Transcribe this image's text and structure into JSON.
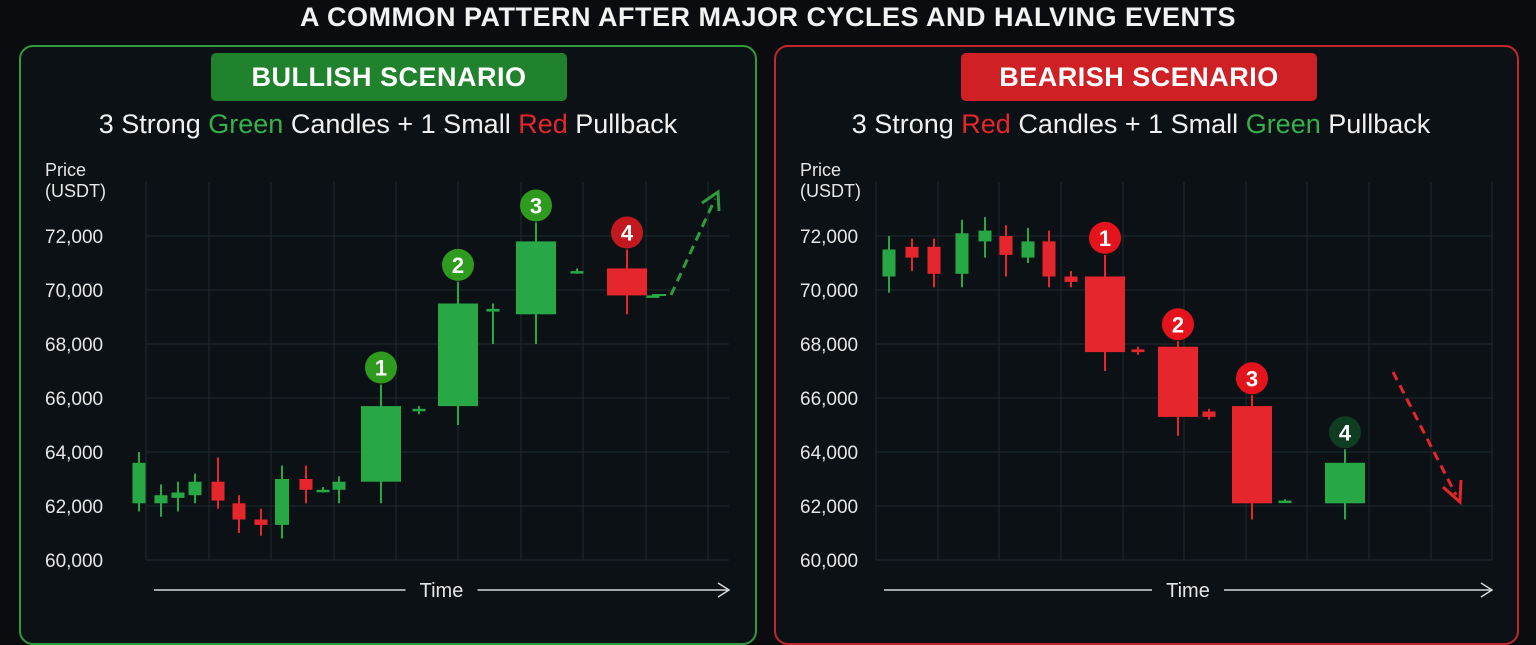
{
  "title": "A COMMON PATTERN AFTER MAJOR CYCLES AND HALVING EVENTS",
  "bullish": {
    "badge": "BULLISH SCENARIO",
    "subtitle": {
      "p1": "3 Strong ",
      "w1": "Green",
      "p2": " Candles + 1 Small ",
      "w2": "Red",
      "p3": " Pullback"
    }
  },
  "bearish": {
    "badge": "BEARISH SCENARIO",
    "subtitle": {
      "p1": "3 Strong ",
      "w1": "Red",
      "p2": " Candles + 1 Small ",
      "w2": "Green",
      "p3": " Pullback"
    }
  },
  "colors": {
    "up": "#28a745",
    "down": "#e5262d",
    "grid": "#1e2a30",
    "marker_bull_green": "#2f9b1e",
    "marker_bull_red": "#c1191f",
    "marker_bear_red": "#e5141c",
    "marker_bear_green": "#0f3d22"
  },
  "chart_data": [
    {
      "type": "candlestick",
      "panel": "bullish",
      "ylabel": "Price\n(USDT)",
      "xlabel": "Time",
      "ylim": [
        60000,
        74000
      ],
      "yticks": [
        "60,000",
        "62,000",
        "64,000",
        "66,000",
        "68,000",
        "70,000",
        "72,000"
      ],
      "ytick_values": [
        60000,
        62000,
        64000,
        66000,
        68000,
        70000,
        72000
      ],
      "candles": [
        {
          "x": 1,
          "open": 62100,
          "close": 63600,
          "high": 64000,
          "low": 61800
        },
        {
          "x": 2,
          "open": 62100,
          "close": 62400,
          "high": 62800,
          "low": 61600
        },
        {
          "x": 3,
          "open": 62300,
          "close": 62500,
          "high": 62900,
          "low": 61800
        },
        {
          "x": 4,
          "open": 62400,
          "close": 62900,
          "high": 63200,
          "low": 62100
        },
        {
          "x": 5,
          "open": 62900,
          "close": 62200,
          "high": 63800,
          "low": 61900
        },
        {
          "x": 6,
          "open": 62100,
          "close": 61500,
          "high": 62400,
          "low": 61000
        },
        {
          "x": 7,
          "open": 61500,
          "close": 61300,
          "high": 61900,
          "low": 60900
        },
        {
          "x": 8,
          "open": 61300,
          "close": 63000,
          "high": 63500,
          "low": 60800
        },
        {
          "x": 9,
          "open": 63000,
          "close": 62600,
          "high": 63500,
          "low": 62100
        },
        {
          "x": 10,
          "open": 62600,
          "close": 62600,
          "high": 62700,
          "low": 62500
        },
        {
          "x": 11,
          "open": 62600,
          "close": 62900,
          "high": 63100,
          "low": 62100
        },
        {
          "x": 12,
          "open": 62900,
          "close": 65700,
          "high": 66500,
          "low": 62100,
          "marker": "1"
        },
        {
          "x": 13,
          "open": 65600,
          "close": 65600,
          "high": 65700,
          "low": 65400
        },
        {
          "x": 14,
          "open": 65700,
          "close": 69500,
          "high": 70300,
          "low": 65000,
          "marker": "2"
        },
        {
          "x": 15,
          "open": 69200,
          "close": 69300,
          "high": 69500,
          "low": 68000
        },
        {
          "x": 16,
          "open": 69100,
          "close": 71800,
          "high": 72500,
          "low": 68000,
          "marker": "3"
        },
        {
          "x": 17,
          "open": 70700,
          "close": 70700,
          "high": 70800,
          "low": 70600
        },
        {
          "x": 18,
          "open": 70800,
          "close": 69800,
          "high": 71500,
          "low": 69100,
          "marker": "4"
        },
        {
          "x": 19,
          "open": 69800,
          "close": 69800,
          "high": 69850,
          "low": 69750
        }
      ],
      "trend_arrow": "up"
    },
    {
      "type": "candlestick",
      "panel": "bearish",
      "ylabel": "Price\n(USDT)",
      "xlabel": "Time",
      "ylim": [
        60000,
        74000
      ],
      "yticks": [
        "60,000",
        "62,000",
        "64,000",
        "66,000",
        "68,000",
        "70,000",
        "72,000"
      ],
      "ytick_values": [
        60000,
        62000,
        64000,
        66000,
        68000,
        70000,
        72000
      ],
      "candles": [
        {
          "x": 1,
          "open": 70500,
          "close": 71500,
          "high": 72000,
          "low": 69900
        },
        {
          "x": 2,
          "open": 71600,
          "close": 71200,
          "high": 71900,
          "low": 70700
        },
        {
          "x": 3,
          "open": 71600,
          "close": 70600,
          "high": 71900,
          "low": 70100
        },
        {
          "x": 4,
          "open": 70600,
          "close": 72100,
          "high": 72600,
          "low": 70100
        },
        {
          "x": 5,
          "open": 71800,
          "close": 72200,
          "high": 72700,
          "low": 71200
        },
        {
          "x": 6,
          "open": 72000,
          "close": 71300,
          "high": 72400,
          "low": 70500
        },
        {
          "x": 7,
          "open": 71200,
          "close": 71800,
          "high": 72300,
          "low": 71000
        },
        {
          "x": 8,
          "open": 71800,
          "close": 70500,
          "high": 72200,
          "low": 70100
        },
        {
          "x": 9,
          "open": 70500,
          "close": 70300,
          "high": 70700,
          "low": 70100
        },
        {
          "x": 10,
          "open": 70500,
          "close": 67700,
          "high": 71300,
          "low": 67000,
          "marker": "1"
        },
        {
          "x": 11,
          "open": 67800,
          "close": 67700,
          "high": 67900,
          "low": 67600
        },
        {
          "x": 12,
          "open": 67900,
          "close": 65300,
          "high": 68100,
          "low": 64600,
          "marker": "2"
        },
        {
          "x": 13,
          "open": 65500,
          "close": 65300,
          "high": 65600,
          "low": 65200
        },
        {
          "x": 14,
          "open": 65700,
          "close": 62100,
          "high": 66100,
          "low": 61500,
          "marker": "3"
        },
        {
          "x": 15,
          "open": 62200,
          "close": 62200,
          "high": 62250,
          "low": 62150
        },
        {
          "x": 16,
          "open": 62100,
          "close": 63600,
          "high": 64100,
          "low": 61500,
          "marker": "4"
        }
      ],
      "trend_arrow": "down"
    }
  ]
}
